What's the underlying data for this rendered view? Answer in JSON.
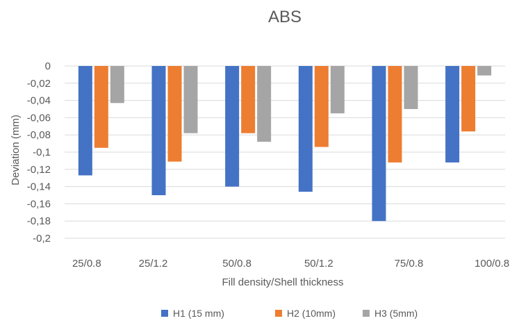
{
  "chart_data": {
    "type": "bar",
    "title": "ABS",
    "xlabel": "Fill density/Shell thickness",
    "ylabel": "Deviation (mm)",
    "categories": [
      "25/0.8",
      "25/1.2",
      "50/0.8",
      "50/1.2",
      "75/0.8",
      "100/0.8"
    ],
    "series": [
      {
        "name": "H1 (15 mm)",
        "color": "#4472c4",
        "values": [
          -0.127,
          -0.15,
          -0.14,
          -0.146,
          -0.18,
          -0.112
        ]
      },
      {
        "name": "H2 (10mm)",
        "color": "#ed7d31",
        "values": [
          -0.095,
          -0.111,
          -0.078,
          -0.094,
          -0.112,
          -0.076
        ]
      },
      {
        "name": "H3 (5mm)",
        "color": "#a5a5a5",
        "values": [
          -0.043,
          -0.078,
          -0.088,
          -0.055,
          -0.05,
          -0.011
        ]
      }
    ],
    "ylim": [
      -0.2,
      0
    ],
    "yticks": [
      "0",
      "-0,02",
      "-0,04",
      "-0,06",
      "-0,08",
      "-0,1",
      "-0,12",
      "-0,14",
      "-0,16",
      "-0,18",
      "-0,2"
    ],
    "grid": true,
    "legend": "bottom"
  }
}
